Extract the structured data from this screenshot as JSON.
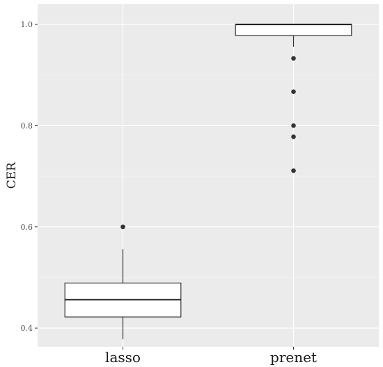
{
  "chart_data": {
    "type": "box",
    "ylabel": "CER",
    "xlabel": "",
    "categories": [
      "lasso",
      "prenet"
    ],
    "ylim": [
      0.363,
      1.04
    ],
    "y_ticks": [
      0.4,
      0.6,
      0.8,
      1.0
    ],
    "y_tick_labels": [
      "0.4",
      "0.6",
      "0.8",
      "1.0"
    ],
    "grid": true,
    "background": "#ebebeb",
    "boxes": [
      {
        "category": "lasso",
        "whisker_low": 0.378,
        "q1": 0.422,
        "median": 0.456,
        "q3": 0.489,
        "whisker_high": 0.556,
        "outliers": [
          0.6
        ]
      },
      {
        "category": "prenet",
        "whisker_low": 0.956,
        "q1": 0.978,
        "median": 1.0,
        "q3": 1.0,
        "whisker_high": 1.0,
        "outliers": [
          0.933,
          0.867,
          0.8,
          0.778,
          0.711
        ]
      }
    ]
  }
}
